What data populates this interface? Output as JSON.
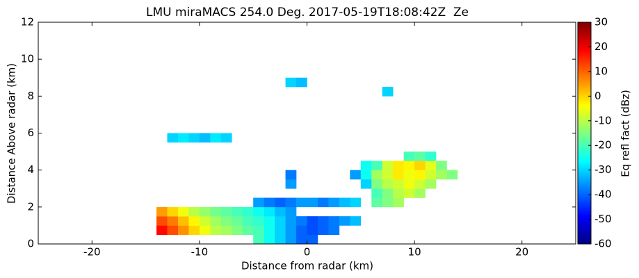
{
  "chart_data": {
    "type": "heatmap",
    "title": "LMU miraMACS 254.0 Deg. 2017-05-19T18:08:42Z  Ze",
    "xlabel": "Distance from radar (km)",
    "ylabel": "Distance Above radar  (km)",
    "colorbar_label": "Eq refl fact (dBz)",
    "colormap": "jet",
    "xlim": [
      -25,
      25
    ],
    "ylim": [
      0,
      12
    ],
    "xticks": [
      -20,
      -10,
      0,
      10,
      20
    ],
    "yticks": [
      0,
      2,
      4,
      6,
      8,
      10,
      12
    ],
    "clim": [
      -60,
      30
    ],
    "cticks": [
      -60,
      -50,
      -40,
      -30,
      -20,
      -10,
      0,
      10,
      20,
      30
    ],
    "xbins": [
      -14,
      -13,
      -12,
      -11,
      -10,
      -9,
      -8,
      -7,
      -6,
      -5,
      -4,
      -3,
      -2,
      -1,
      0,
      1,
      2,
      3,
      4,
      5,
      6,
      7,
      8,
      9,
      10,
      11,
      12,
      13,
      14
    ],
    "ybins": [
      0,
      0.5,
      1,
      1.5,
      2,
      2.5,
      3,
      3.5,
      4,
      4.5,
      5,
      5.5,
      6,
      6.5,
      7,
      7.5,
      8,
      8.5,
      9
    ],
    "z": [
      [
        null,
        null,
        null,
        null,
        null,
        null,
        null,
        null,
        null,
        -20,
        -25,
        -30,
        -35,
        -40,
        -40,
        null,
        null,
        null,
        null,
        null,
        null,
        null,
        null,
        null,
        null,
        null,
        null,
        null
      ],
      [
        18,
        12,
        6,
        0,
        -5,
        -10,
        -12,
        -15,
        -18,
        -20,
        -25,
        -30,
        -35,
        -40,
        -42,
        -40,
        -38,
        null,
        null,
        null,
        null,
        null,
        null,
        null,
        null,
        null,
        null,
        null
      ],
      [
        12,
        8,
        2,
        -3,
        -8,
        -12,
        -15,
        -17,
        -20,
        -22,
        -25,
        -30,
        -35,
        -38,
        -42,
        -40,
        -38,
        -35,
        -32,
        null,
        null,
        null,
        null,
        null,
        null,
        null,
        null,
        null
      ],
      [
        5,
        0,
        -5,
        -10,
        -13,
        -16,
        -18,
        -20,
        -22,
        -25,
        -28,
        -32,
        -35,
        null,
        null,
        null,
        null,
        null,
        null,
        null,
        null,
        null,
        null,
        null,
        null,
        null,
        null,
        null
      ],
      [
        null,
        null,
        null,
        null,
        null,
        null,
        null,
        null,
        null,
        -35,
        -38,
        -40,
        -38,
        -35,
        -35,
        -38,
        -35,
        -32,
        -30,
        null,
        -18,
        -15,
        -12,
        null,
        null,
        null,
        null,
        null
      ],
      [
        null,
        null,
        null,
        null,
        null,
        null,
        null,
        null,
        null,
        null,
        null,
        null,
        null,
        null,
        null,
        null,
        null,
        null,
        null,
        null,
        -20,
        -15,
        -10,
        -8,
        -12,
        null,
        null,
        null
      ],
      [
        null,
        null,
        null,
        null,
        null,
        null,
        null,
        null,
        null,
        null,
        null,
        null,
        -35,
        null,
        null,
        null,
        null,
        null,
        null,
        -30,
        -15,
        -10,
        -8,
        -5,
        -8,
        -12,
        null,
        null
      ],
      [
        null,
        null,
        null,
        null,
        null,
        null,
        null,
        null,
        null,
        null,
        null,
        null,
        -38,
        null,
        null,
        null,
        null,
        null,
        -35,
        -25,
        -12,
        -8,
        -2,
        -5,
        -3,
        -8,
        -12,
        -15
      ],
      [
        null,
        null,
        null,
        null,
        null,
        null,
        null,
        null,
        null,
        null,
        null,
        null,
        null,
        null,
        null,
        null,
        null,
        null,
        null,
        -25,
        -20,
        -8,
        -2,
        -3,
        0,
        -6,
        -15,
        null
      ],
      [
        null,
        null,
        null,
        null,
        null,
        null,
        null,
        null,
        null,
        null,
        null,
        null,
        null,
        null,
        null,
        null,
        null,
        null,
        null,
        null,
        null,
        null,
        null,
        -20,
        -18,
        -22,
        null,
        null
      ],
      [
        null,
        null,
        null,
        null,
        null,
        null,
        null,
        null,
        null,
        null,
        null,
        null,
        null,
        null,
        null,
        null,
        null,
        null,
        null,
        null,
        null,
        null,
        null,
        null,
        null,
        null,
        null,
        null
      ],
      [
        null,
        -30,
        -28,
        -30,
        -32,
        -28,
        -30,
        null,
        null,
        null,
        null,
        null,
        null,
        null,
        null,
        null,
        null,
        null,
        null,
        null,
        null,
        null,
        null,
        null,
        null,
        null,
        null,
        null
      ],
      [
        null,
        null,
        null,
        null,
        null,
        null,
        null,
        null,
        null,
        null,
        null,
        null,
        null,
        null,
        null,
        null,
        null,
        null,
        null,
        null,
        null,
        null,
        null,
        null,
        null,
        null,
        null,
        null
      ],
      [
        null,
        null,
        null,
        null,
        null,
        null,
        null,
        null,
        null,
        null,
        null,
        null,
        null,
        null,
        null,
        null,
        null,
        null,
        null,
        null,
        null,
        null,
        null,
        null,
        null,
        null,
        null,
        null
      ],
      [
        null,
        null,
        null,
        null,
        null,
        null,
        null,
        null,
        null,
        null,
        null,
        null,
        null,
        null,
        null,
        null,
        null,
        null,
        null,
        null,
        null,
        null,
        null,
        null,
        null,
        null,
        null,
        null
      ],
      [
        null,
        null,
        null,
        null,
        null,
        null,
        null,
        null,
        null,
        null,
        null,
        null,
        null,
        null,
        null,
        null,
        null,
        null,
        null,
        null,
        null,
        null,
        null,
        null,
        null,
        null,
        null,
        null
      ],
      [
        null,
        null,
        null,
        null,
        null,
        null,
        null,
        null,
        null,
        null,
        null,
        null,
        null,
        null,
        null,
        null,
        null,
        null,
        null,
        null,
        null,
        -30,
        null,
        null,
        null,
        null,
        null,
        null
      ],
      [
        null,
        null,
        null,
        null,
        null,
        null,
        null,
        null,
        null,
        null,
        null,
        null,
        -30,
        -32,
        null,
        null,
        null,
        null,
        null,
        null,
        null,
        null,
        null,
        null,
        null,
        null,
        null,
        null
      ]
    ]
  }
}
